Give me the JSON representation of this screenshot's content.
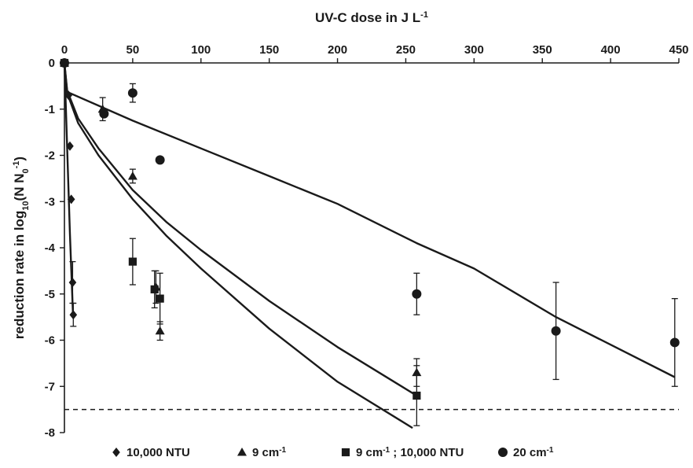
{
  "chart_data": {
    "type": "scatter",
    "xlabel_main": "UV-C dose in J L",
    "xlabel_sup": "-1",
    "ylabel": {
      "p1": "reduction rate in log",
      "sub": "10",
      "p2": "(N N",
      "sub2": "0",
      "sup": "-1",
      "p3": ")"
    },
    "xlim": [
      0,
      450
    ],
    "ylim": [
      -8,
      0
    ],
    "x_axis_position": "top",
    "x_ticks": [
      0,
      50,
      100,
      150,
      200,
      250,
      300,
      350,
      400,
      450
    ],
    "y_ticks": [
      0,
      -1,
      -2,
      -3,
      -4,
      -5,
      -6,
      -7,
      -8
    ],
    "grid": false,
    "legend_placement": "bottom",
    "threshold_line": {
      "y": -7.5,
      "style": "dashed"
    },
    "series": [
      {
        "name": "10,000 NTU",
        "name_sup": "",
        "marker": "diamond",
        "points": [
          {
            "x": 0,
            "y": 0,
            "err": 0
          },
          {
            "x": 3,
            "y": -0.7,
            "err": 0
          },
          {
            "x": 4,
            "y": -1.8,
            "err": 0
          },
          {
            "x": 5,
            "y": -2.95,
            "err": 0
          },
          {
            "x": 6,
            "y": -4.75,
            "err": 0.45
          },
          {
            "x": 6.5,
            "y": -5.45,
            "err": 0.25
          }
        ],
        "fit": [
          [
            0,
            0
          ],
          [
            2,
            -1.85
          ],
          [
            4,
            -3.7
          ],
          [
            6.3,
            -5.45
          ]
        ]
      },
      {
        "name": "9 cm",
        "name_sup": "-1",
        "marker": "triangle",
        "points": [
          {
            "x": 0,
            "y": 0,
            "err": 0
          },
          {
            "x": 28,
            "y": -1.0,
            "err": 0.25
          },
          {
            "x": 50,
            "y": -2.45,
            "err": 0.15
          },
          {
            "x": 67,
            "y": -4.85,
            "err": 0.35
          },
          {
            "x": 70,
            "y": -5.8,
            "err": 0.2
          },
          {
            "x": 258,
            "y": -6.7,
            "err": 0.3
          }
        ],
        "fit": [
          [
            0,
            0
          ],
          [
            2,
            -0.6
          ],
          [
            10,
            -1.2
          ],
          [
            25,
            -1.85
          ],
          [
            50,
            -2.75
          ],
          [
            75,
            -3.45
          ],
          [
            100,
            -4.05
          ],
          [
            150,
            -5.15
          ],
          [
            200,
            -6.15
          ],
          [
            258,
            -7.2
          ]
        ]
      },
      {
        "name": "9 cm",
        "name_sup": "-1",
        "name_suffix": " ; 10,000 NTU",
        "marker": "square",
        "points": [
          {
            "x": 0,
            "y": 0,
            "err": 0
          },
          {
            "x": 50,
            "y": -4.3,
            "err": 0.5
          },
          {
            "x": 66,
            "y": -4.9,
            "err": 0.4
          },
          {
            "x": 70,
            "y": -5.1,
            "err": 0.55
          },
          {
            "x": 258,
            "y": -7.2,
            "err": 0.65
          }
        ],
        "fit": [
          [
            0,
            0
          ],
          [
            2,
            -0.65
          ],
          [
            10,
            -1.3
          ],
          [
            25,
            -2.0
          ],
          [
            50,
            -2.95
          ],
          [
            75,
            -3.75
          ],
          [
            100,
            -4.45
          ],
          [
            150,
            -5.75
          ],
          [
            200,
            -6.9
          ],
          [
            255,
            -7.9
          ]
        ]
      },
      {
        "name": "20 cm",
        "name_sup": "-1",
        "marker": "circle",
        "points": [
          {
            "x": 0,
            "y": 0,
            "err": 0
          },
          {
            "x": 29,
            "y": -1.1,
            "err": 0
          },
          {
            "x": 50,
            "y": -0.65,
            "err": 0.2
          },
          {
            "x": 70,
            "y": -2.1,
            "err": 0
          },
          {
            "x": 258,
            "y": -5.0,
            "err": 0.45
          },
          {
            "x": 360,
            "y": -5.8,
            "err": 1.05
          },
          {
            "x": 447,
            "y": -6.05,
            "err": 0.95
          }
        ],
        "fit": [
          [
            0,
            -0.6
          ],
          [
            50,
            -1.25
          ],
          [
            100,
            -1.85
          ],
          [
            150,
            -2.45
          ],
          [
            200,
            -3.05
          ],
          [
            258,
            -3.9
          ],
          [
            300,
            -4.45
          ],
          [
            360,
            -5.5
          ],
          [
            447,
            -6.8
          ]
        ]
      }
    ]
  }
}
